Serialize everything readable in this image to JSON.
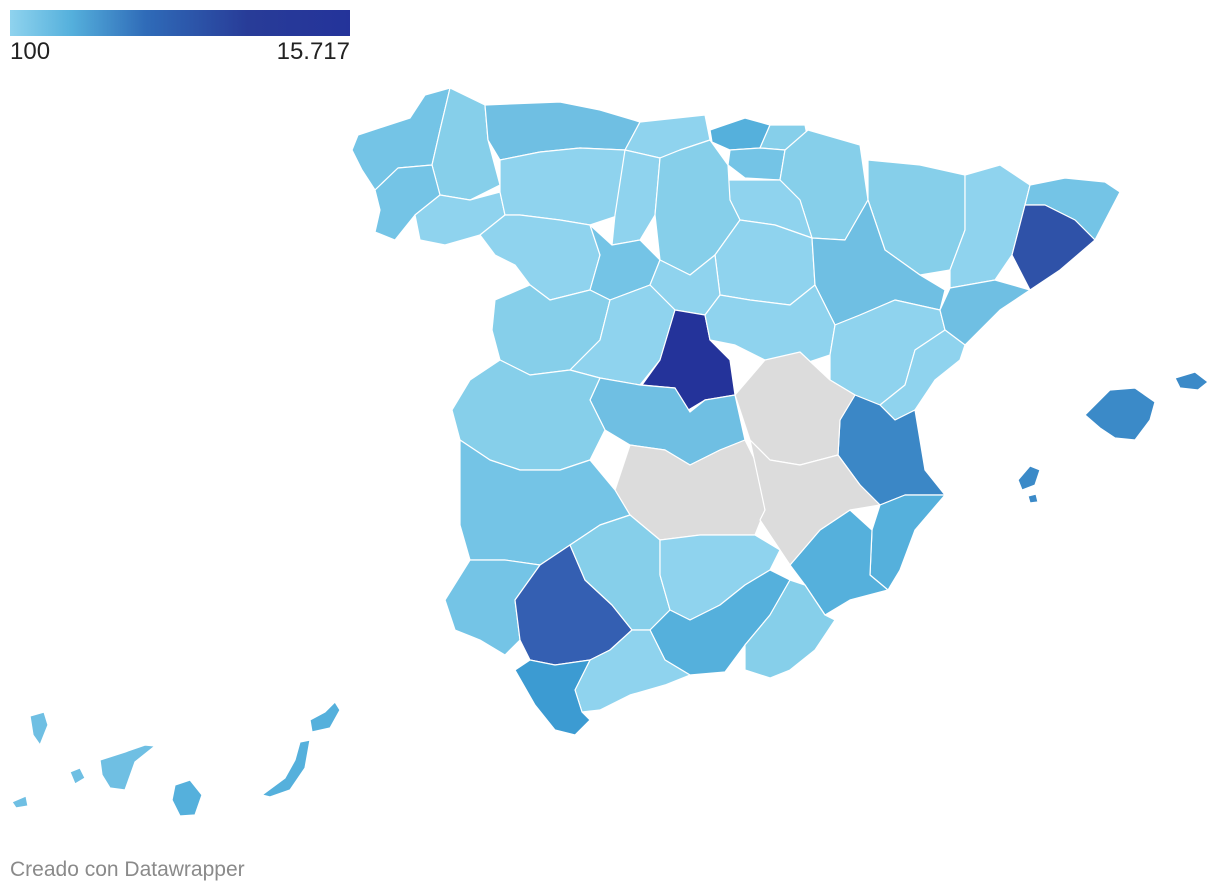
{
  "legend": {
    "min_label": "100",
    "max_label": "15.717"
  },
  "colors": {
    "scale": [
      "#8fd3ee",
      "#55b0dc",
      "#2f6bb8",
      "#24339a"
    ],
    "no_data": "#dcdcdc",
    "border": "#ffffff"
  },
  "credit": "Creado con Datawrapper"
}
